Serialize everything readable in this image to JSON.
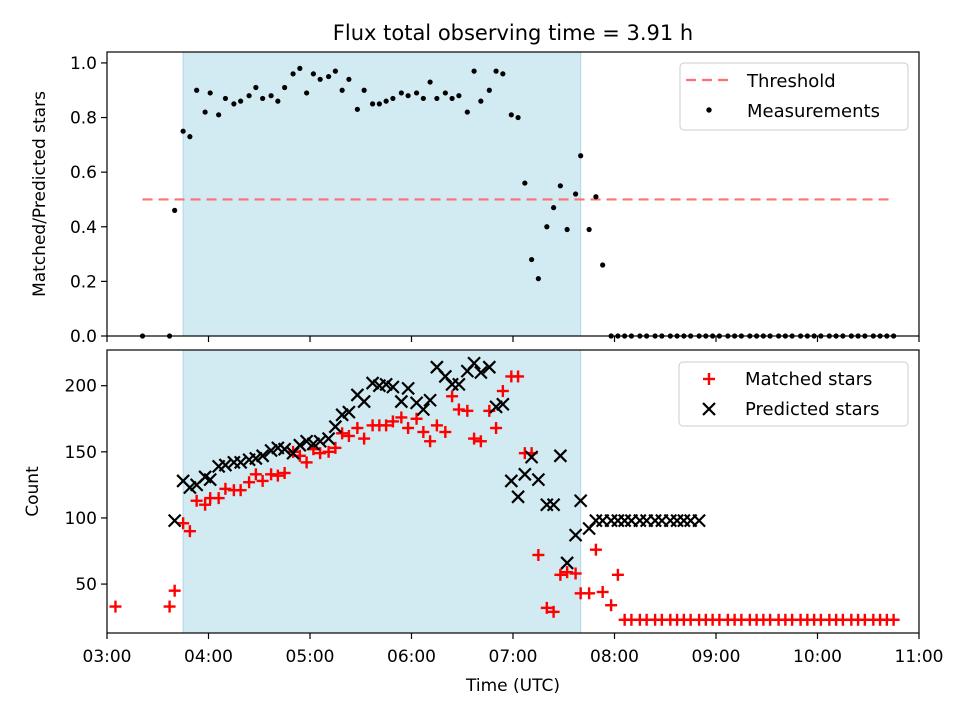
{
  "chart_data": [
    {
      "type": "scatter",
      "title": "Flux total observing time = 3.91 h",
      "xlabel": "",
      "ylabel": "Matched/Predicted stars",
      "xlim": [
        "03:00",
        "11:00"
      ],
      "ylim": [
        0,
        1.04
      ],
      "yticks": [
        "0.0",
        "0.2",
        "0.4",
        "0.6",
        "0.8",
        "1.0"
      ],
      "grid": false,
      "legend_position": "upper right",
      "highlight_span": {
        "x0": "03:45",
        "x1": "07:40",
        "color": "#add8e6"
      },
      "threshold": {
        "label": "Threshold",
        "y": 0.5,
        "x0": "03:21",
        "x1": "10:45",
        "color": "#ff7070"
      },
      "series": [
        {
          "name": "Measurements",
          "color": "#000000",
          "x": [
            "03:21",
            "03:37",
            "03:40",
            "03:45",
            "03:49",
            "03:53",
            "03:58",
            "04:01",
            "04:06",
            "04:10",
            "04:15",
            "04:19",
            "04:24",
            "04:28",
            "04:32",
            "04:37",
            "04:41",
            "04:45",
            "04:50",
            "04:54",
            "04:58",
            "05:02",
            "05:06",
            "05:11",
            "05:15",
            "05:19",
            "05:23",
            "05:28",
            "05:32",
            "05:37",
            "05:41",
            "05:45",
            "05:49",
            "05:54",
            "05:58",
            "06:03",
            "06:07",
            "06:11",
            "06:15",
            "06:20",
            "06:24",
            "06:28",
            "06:33",
            "06:37",
            "06:41",
            "06:46",
            "06:50",
            "06:54",
            "06:59",
            "07:03",
            "07:07",
            "07:11",
            "07:15",
            "07:20",
            "07:24",
            "07:28",
            "07:32",
            "07:37",
            "07:40",
            "07:45",
            "07:49",
            "07:53",
            "07:58",
            "08:02",
            "08:06",
            "08:10",
            "08:15",
            "08:19",
            "08:24",
            "08:28",
            "08:33",
            "08:37",
            "08:41",
            "08:45",
            "08:50",
            "08:54",
            "08:58",
            "09:02",
            "09:07",
            "09:11",
            "09:15",
            "09:20",
            "09:24",
            "09:28",
            "09:32",
            "09:37",
            "09:41",
            "09:45",
            "09:50",
            "09:54",
            "09:58",
            "10:02",
            "10:07",
            "10:11",
            "10:15",
            "10:20",
            "10:24",
            "10:28",
            "10:33",
            "10:37",
            "10:41",
            "10:45"
          ],
          "y": [
            0.0,
            0.0,
            0.46,
            0.75,
            0.73,
            0.9,
            0.82,
            0.89,
            0.81,
            0.87,
            0.85,
            0.86,
            0.88,
            0.91,
            0.87,
            0.88,
            0.86,
            0.91,
            0.96,
            0.98,
            0.89,
            0.96,
            0.94,
            0.95,
            0.97,
            0.9,
            0.94,
            0.83,
            0.9,
            0.85,
            0.85,
            0.86,
            0.87,
            0.89,
            0.88,
            0.89,
            0.87,
            0.93,
            0.87,
            0.89,
            0.87,
            0.88,
            0.82,
            0.97,
            0.86,
            0.9,
            0.97,
            0.96,
            0.81,
            0.8,
            0.56,
            0.28,
            0.21,
            0.4,
            0.47,
            0.55,
            0.39,
            0.52,
            0.66,
            0.39,
            0.51,
            0.26,
            0.0,
            0.0,
            0.0,
            0.0,
            0.0,
            0.0,
            0.0,
            0.0,
            0.0,
            0.0,
            0.0,
            0.0,
            0.0,
            0.0,
            0.0,
            0.0,
            0.0,
            0.0,
            0.0,
            0.0,
            0.0,
            0.0,
            0.0,
            0.0,
            0.0,
            0.0,
            0.0,
            0.0,
            0.0,
            0.0,
            0.0,
            0.0,
            0.0,
            0.0,
            0.0,
            0.0,
            0.0,
            0.0,
            0.0,
            0.0
          ]
        }
      ]
    },
    {
      "type": "scatter",
      "title": "",
      "xlabel": "Time (UTC)",
      "ylabel": "Count",
      "xlim": [
        "03:00",
        "11:00"
      ],
      "ylim": [
        13,
        227
      ],
      "xticks": [
        "03:00",
        "04:00",
        "05:00",
        "06:00",
        "07:00",
        "08:00",
        "09:00",
        "10:00",
        "11:00"
      ],
      "yticks": [
        "50",
        "100",
        "150",
        "200"
      ],
      "grid": false,
      "legend_position": "upper right",
      "highlight_span": {
        "x0": "03:45",
        "x1": "07:40",
        "color": "#add8e6"
      },
      "series": [
        {
          "name": "Matched stars",
          "marker": "plus",
          "color": "#ff0000",
          "x": [
            "03:05",
            "03:37",
            "03:40",
            "03:45",
            "03:49",
            "03:53",
            "03:58",
            "04:01",
            "04:06",
            "04:10",
            "04:15",
            "04:19",
            "04:24",
            "04:28",
            "04:32",
            "04:37",
            "04:41",
            "04:45",
            "04:50",
            "04:54",
            "04:58",
            "05:02",
            "05:06",
            "05:11",
            "05:15",
            "05:19",
            "05:23",
            "05:28",
            "05:32",
            "05:37",
            "05:41",
            "05:45",
            "05:49",
            "05:54",
            "05:58",
            "06:03",
            "06:07",
            "06:11",
            "06:15",
            "06:20",
            "06:24",
            "06:28",
            "06:33",
            "06:37",
            "06:41",
            "06:46",
            "06:50",
            "06:54",
            "06:59",
            "07:03",
            "07:07",
            "07:11",
            "07:15",
            "07:20",
            "07:24",
            "07:28",
            "07:32",
            "07:37",
            "07:40",
            "07:45",
            "07:49",
            "07:53",
            "07:58",
            "08:02",
            "08:06",
            "08:10",
            "08:15",
            "08:19",
            "08:24",
            "08:28",
            "08:33",
            "08:37",
            "08:41",
            "08:45",
            "08:50",
            "08:54",
            "08:58",
            "09:02",
            "09:07",
            "09:11",
            "09:15",
            "09:20",
            "09:24",
            "09:28",
            "09:32",
            "09:37",
            "09:41",
            "09:45",
            "09:50",
            "09:54",
            "09:58",
            "10:02",
            "10:07",
            "10:11",
            "10:15",
            "10:20",
            "10:24",
            "10:28",
            "10:33",
            "10:37",
            "10:41",
            "10:45"
          ],
          "y": [
            33,
            33,
            45,
            96,
            90,
            113,
            110,
            115,
            115,
            122,
            121,
            121,
            127,
            133,
            128,
            133,
            132,
            134,
            150,
            147,
            142,
            152,
            149,
            150,
            153,
            164,
            162,
            168,
            160,
            170,
            170,
            170,
            173,
            176,
            168,
            175,
            165,
            158,
            170,
            165,
            192,
            182,
            181,
            160,
            158,
            181,
            168,
            196,
            207,
            207,
            149,
            149,
            72,
            32,
            29,
            57,
            59,
            58,
            43,
            43,
            76,
            44,
            34,
            57,
            23,
            23,
            23,
            23,
            23,
            23,
            23,
            23,
            23,
            23,
            23,
            23,
            23,
            23,
            23,
            23,
            23,
            23,
            23,
            23,
            23,
            23,
            23,
            23,
            23,
            23,
            23,
            23,
            23,
            23,
            23,
            23,
            23,
            23,
            23,
            23,
            23,
            23
          ]
        },
        {
          "name": "Predicted stars",
          "marker": "x",
          "color": "#000000",
          "x": [
            "03:40",
            "03:45",
            "03:49",
            "03:53",
            "03:58",
            "04:01",
            "04:06",
            "04:10",
            "04:15",
            "04:19",
            "04:24",
            "04:28",
            "04:32",
            "04:37",
            "04:41",
            "04:45",
            "04:50",
            "04:54",
            "04:58",
            "05:02",
            "05:06",
            "05:11",
            "05:15",
            "05:19",
            "05:23",
            "05:28",
            "05:32",
            "05:37",
            "05:41",
            "05:45",
            "05:49",
            "05:54",
            "05:58",
            "06:03",
            "06:07",
            "06:11",
            "06:15",
            "06:20",
            "06:24",
            "06:28",
            "06:33",
            "06:37",
            "06:41",
            "06:46",
            "06:50",
            "06:54",
            "06:59",
            "07:03",
            "07:07",
            "07:11",
            "07:15",
            "07:20",
            "07:24",
            "07:28",
            "07:32",
            "07:37",
            "07:40",
            "07:45",
            "07:49",
            "07:53",
            "07:58",
            "08:02",
            "08:06",
            "08:10",
            "08:15",
            "08:19",
            "08:24",
            "08:28",
            "08:33",
            "08:37",
            "08:41",
            "08:45",
            "08:50"
          ],
          "y": [
            98,
            128,
            123,
            125,
            131,
            129,
            139,
            140,
            142,
            142,
            144,
            145,
            147,
            151,
            153,
            152,
            149,
            155,
            158,
            156,
            158,
            160,
            169,
            178,
            180,
            193,
            188,
            202,
            200,
            201,
            199,
            188,
            198,
            187,
            182,
            189,
            214,
            207,
            201,
            201,
            211,
            217,
            210,
            214,
            184,
            186,
            128,
            116,
            133,
            146,
            129,
            110,
            110,
            147,
            66,
            87,
            113,
            92,
            98,
            98,
            98,
            98,
            98,
            98,
            98,
            98,
            98,
            98,
            98,
            98,
            98,
            98,
            98
          ]
        }
      ]
    }
  ]
}
